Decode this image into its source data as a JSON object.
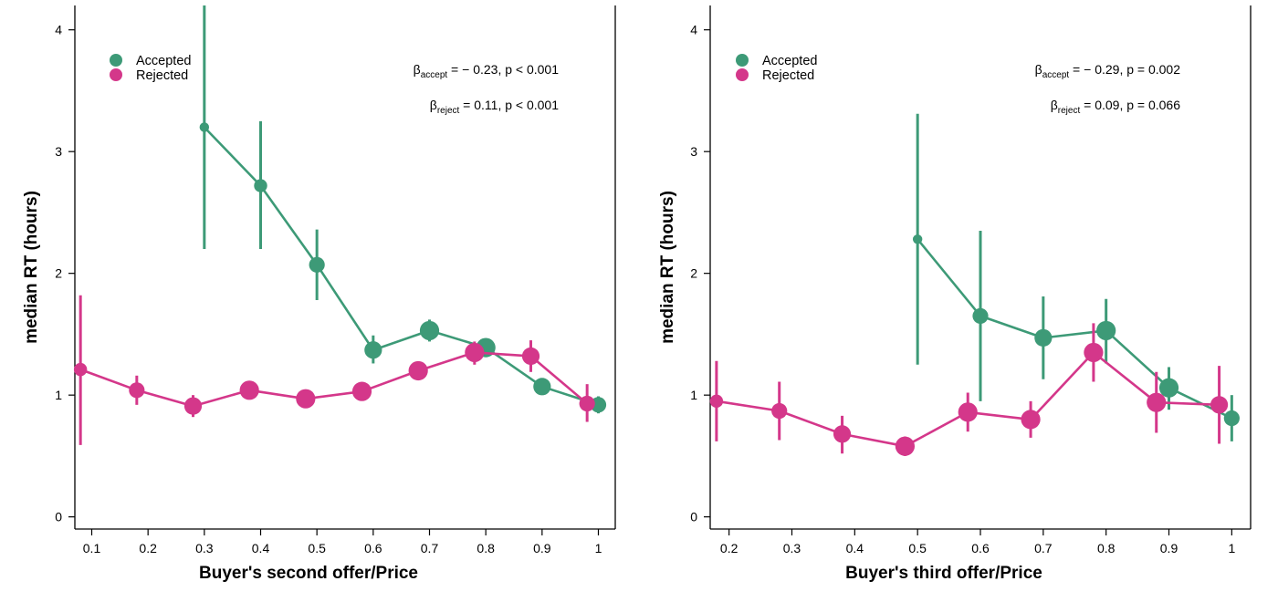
{
  "colors": {
    "accepted": "#3d9a77",
    "rejected": "#d4378a",
    "axis": "#000000"
  },
  "chart_data": [
    {
      "type": "line",
      "xlabel": "Buyer's second offer/Price",
      "ylabel": "median RT (hours)",
      "xlim": [
        0.07,
        1.03
      ],
      "ylim": [
        -0.1,
        4.2
      ],
      "xticks": [
        "0.1",
        "0.2",
        "0.3",
        "0.4",
        "0.5",
        "0.6",
        "0.7",
        "0.8",
        "0.9",
        "1"
      ],
      "xtick_values": [
        0.1,
        0.2,
        0.3,
        0.4,
        0.5,
        0.6,
        0.7,
        0.8,
        0.9,
        1.0
      ],
      "yticks": [
        "0",
        "1",
        "2",
        "3",
        "4"
      ],
      "ytick_values": [
        0,
        1,
        2,
        3,
        4
      ],
      "legend": [
        "Accepted",
        "Rejected"
      ],
      "legend_position": "top-left",
      "annotations": [
        {
          "base": "β",
          "sub": "accept",
          "rest": " = − 0.23, p < 0.001"
        },
        {
          "base": "β",
          "sub": "reject",
          "rest": " = 0.11, p < 0.001"
        }
      ],
      "series": [
        {
          "name": "Accepted",
          "color": "accepted",
          "points": [
            {
              "x": 0.3,
              "y": 3.2,
              "lo": 2.2,
              "hi": 4.2,
              "size": 1
            },
            {
              "x": 0.4,
              "y": 2.72,
              "lo": 2.2,
              "hi": 3.25,
              "size": 2
            },
            {
              "x": 0.5,
              "y": 2.07,
              "lo": 1.78,
              "hi": 2.36,
              "size": 3
            },
            {
              "x": 0.6,
              "y": 1.37,
              "lo": 1.26,
              "hi": 1.49,
              "size": 4
            },
            {
              "x": 0.7,
              "y": 1.53,
              "lo": 1.44,
              "hi": 1.62,
              "size": 5
            },
            {
              "x": 0.8,
              "y": 1.39,
              "lo": 1.32,
              "hi": 1.46,
              "size": 5
            },
            {
              "x": 0.9,
              "y": 1.07,
              "lo": 1.03,
              "hi": 1.11,
              "size": 4
            },
            {
              "x": 1.0,
              "y": 0.92,
              "lo": 0.85,
              "hi": 0.99,
              "size": 3
            }
          ]
        },
        {
          "name": "Rejected",
          "color": "rejected",
          "points": [
            {
              "x": 0.08,
              "y": 1.21,
              "lo": 0.59,
              "hi": 1.82,
              "size": 2
            },
            {
              "x": 0.18,
              "y": 1.04,
              "lo": 0.92,
              "hi": 1.16,
              "size": 3
            },
            {
              "x": 0.28,
              "y": 0.91,
              "lo": 0.82,
              "hi": 1.0,
              "size": 4
            },
            {
              "x": 0.38,
              "y": 1.04,
              "lo": 0.98,
              "hi": 1.1,
              "size": 5
            },
            {
              "x": 0.48,
              "y": 0.97,
              "lo": 0.93,
              "hi": 1.01,
              "size": 5
            },
            {
              "x": 0.58,
              "y": 1.03,
              "lo": 0.98,
              "hi": 1.08,
              "size": 5
            },
            {
              "x": 0.68,
              "y": 1.2,
              "lo": 1.14,
              "hi": 1.27,
              "size": 5
            },
            {
              "x": 0.78,
              "y": 1.35,
              "lo": 1.25,
              "hi": 1.44,
              "size": 5
            },
            {
              "x": 0.88,
              "y": 1.32,
              "lo": 1.19,
              "hi": 1.45,
              "size": 4
            },
            {
              "x": 0.98,
              "y": 0.93,
              "lo": 0.78,
              "hi": 1.09,
              "size": 3
            }
          ]
        }
      ]
    },
    {
      "type": "line",
      "xlabel": "Buyer's third offer/Price",
      "ylabel": "median RT (hours)",
      "xlim": [
        0.17,
        1.03
      ],
      "ylim": [
        -0.1,
        4.2
      ],
      "xticks": [
        "0.2",
        "0.3",
        "0.4",
        "0.5",
        "0.6",
        "0.7",
        "0.8",
        "0.9",
        "1"
      ],
      "xtick_values": [
        0.2,
        0.3,
        0.4,
        0.5,
        0.6,
        0.7,
        0.8,
        0.9,
        1.0
      ],
      "yticks": [
        "0",
        "1",
        "2",
        "3",
        "4"
      ],
      "ytick_values": [
        0,
        1,
        2,
        3,
        4
      ],
      "legend": [
        "Accepted",
        "Rejected"
      ],
      "legend_position": "top-left",
      "annotations": [
        {
          "base": "β",
          "sub": "accept",
          "rest": " = − 0.29, p = 0.002"
        },
        {
          "base": "β",
          "sub": "reject",
          "rest": " = 0.09, p = 0.066"
        }
      ],
      "series": [
        {
          "name": "Accepted",
          "color": "accepted",
          "points": [
            {
              "x": 0.5,
              "y": 2.28,
              "lo": 1.25,
              "hi": 3.31,
              "size": 1
            },
            {
              "x": 0.6,
              "y": 1.65,
              "lo": 0.95,
              "hi": 2.35,
              "size": 3
            },
            {
              "x": 0.7,
              "y": 1.47,
              "lo": 1.13,
              "hi": 1.81,
              "size": 4
            },
            {
              "x": 0.8,
              "y": 1.53,
              "lo": 1.26,
              "hi": 1.79,
              "size": 5
            },
            {
              "x": 0.9,
              "y": 1.06,
              "lo": 0.88,
              "hi": 1.23,
              "size": 5
            },
            {
              "x": 1.0,
              "y": 0.81,
              "lo": 0.62,
              "hi": 1.0,
              "size": 3
            }
          ]
        },
        {
          "name": "Rejected",
          "color": "rejected",
          "points": [
            {
              "x": 0.18,
              "y": 0.95,
              "lo": 0.62,
              "hi": 1.28,
              "size": 2
            },
            {
              "x": 0.28,
              "y": 0.87,
              "lo": 0.63,
              "hi": 1.11,
              "size": 3
            },
            {
              "x": 0.38,
              "y": 0.68,
              "lo": 0.52,
              "hi": 0.83,
              "size": 4
            },
            {
              "x": 0.48,
              "y": 0.58,
              "lo": 0.5,
              "hi": 0.66,
              "size": 5
            },
            {
              "x": 0.58,
              "y": 0.86,
              "lo": 0.7,
              "hi": 1.02,
              "size": 5
            },
            {
              "x": 0.68,
              "y": 0.8,
              "lo": 0.65,
              "hi": 0.95,
              "size": 5
            },
            {
              "x": 0.78,
              "y": 1.35,
              "lo": 1.11,
              "hi": 1.59,
              "size": 5
            },
            {
              "x": 0.88,
              "y": 0.94,
              "lo": 0.69,
              "hi": 1.19,
              "size": 5
            },
            {
              "x": 0.98,
              "y": 0.92,
              "lo": 0.6,
              "hi": 1.24,
              "size": 4
            }
          ]
        }
      ]
    }
  ]
}
